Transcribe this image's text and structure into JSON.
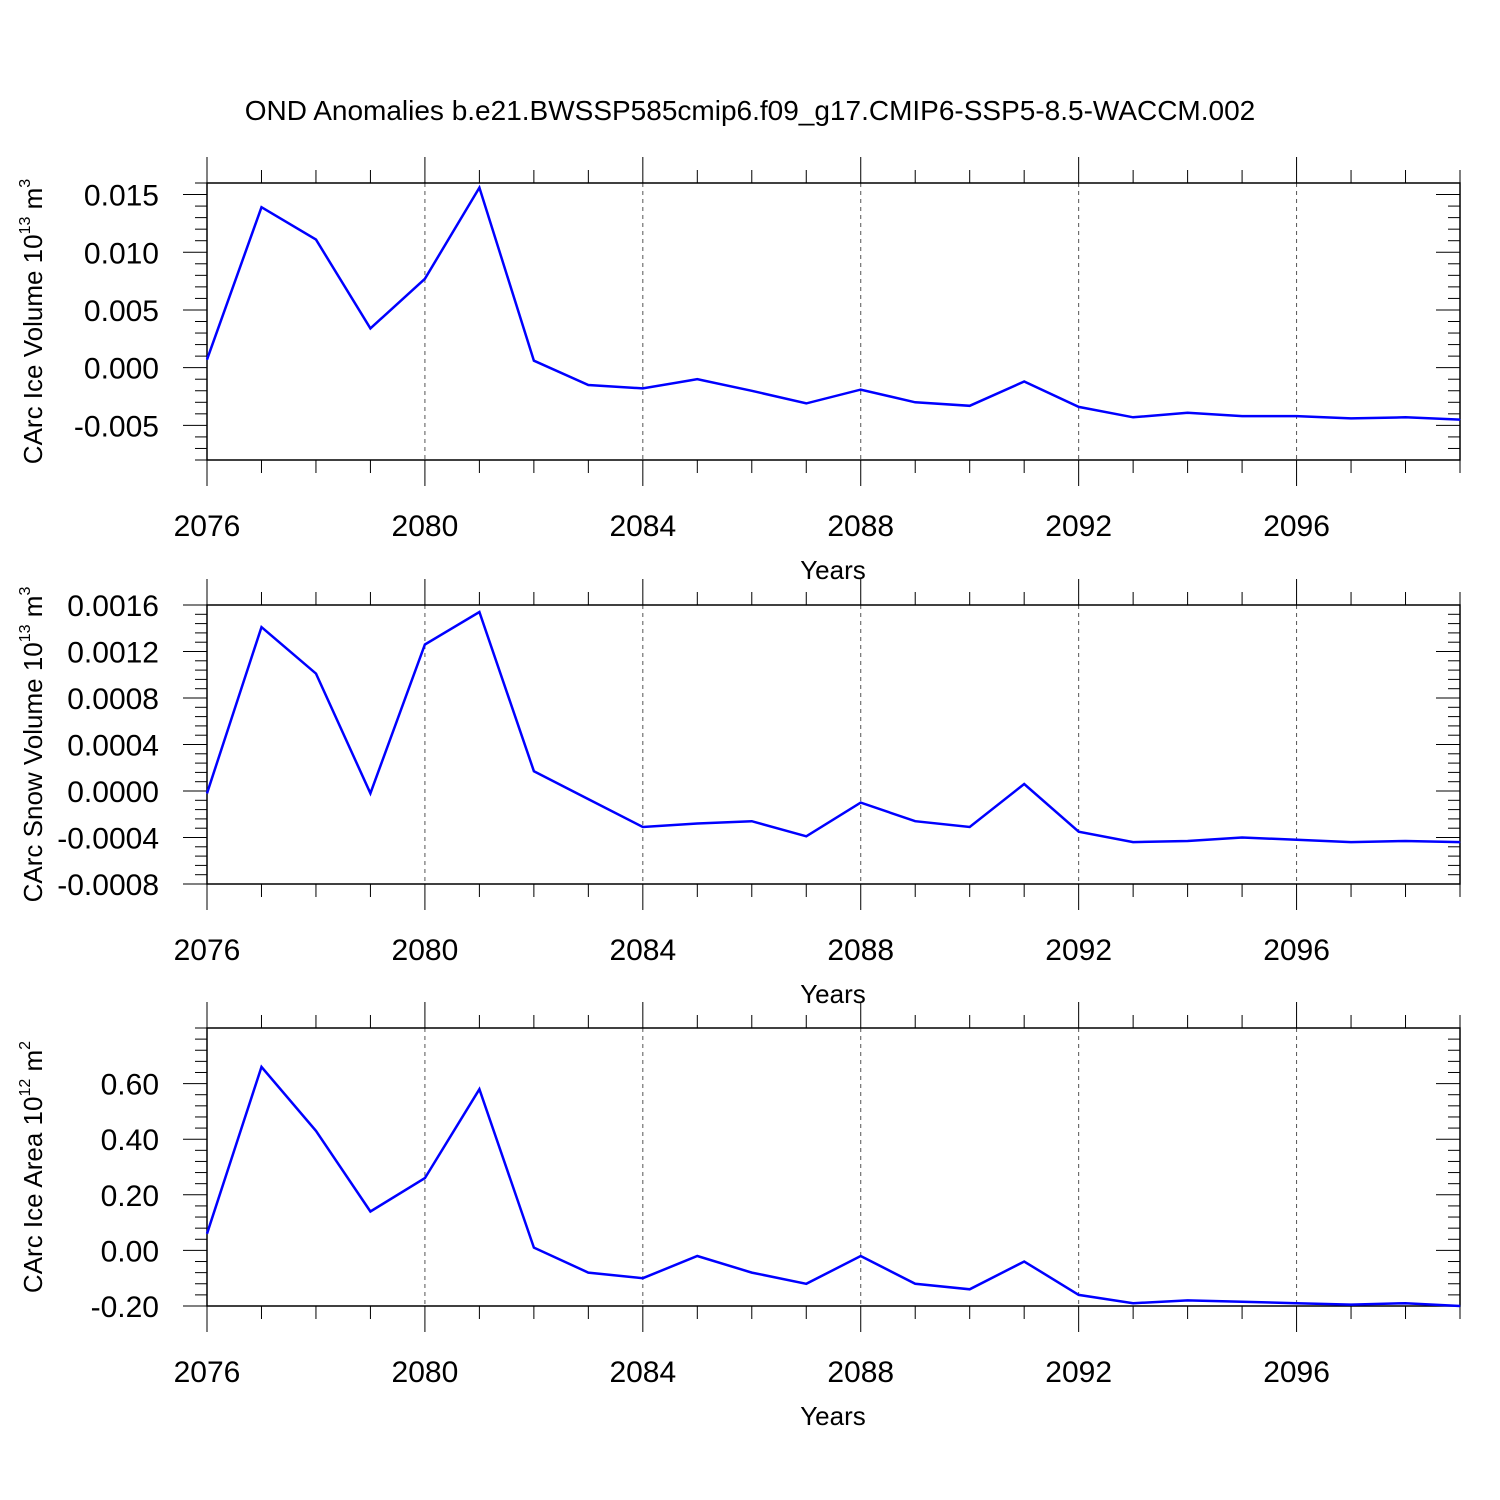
{
  "title": "OND Anomalies b.e21.BWSSP585cmip6.f09_g17.CMIP6-SSP5-8.5-WACCM.002",
  "colors": {
    "line": "#0000ff",
    "axis": "#000000",
    "grid": "#555555"
  },
  "chart_data": [
    {
      "type": "line",
      "xlabel": "Years",
      "ylabel": {
        "text": "CArc Ice Volume 10",
        "exponent": "13",
        "unit": "m",
        "unit_exponent": "3"
      },
      "xlim": [
        2076,
        2099
      ],
      "ylim": [
        -0.008,
        0.016
      ],
      "xticks": [
        2076,
        2080,
        2084,
        2088,
        2092,
        2096
      ],
      "yticks": [
        -0.005,
        0.0,
        0.005,
        0.01,
        0.015
      ],
      "ytick_labels": [
        "-0.005",
        "0.000",
        "0.005",
        "0.010",
        "0.015"
      ],
      "grid": "dashed vertical lines at labeled x ticks",
      "series": [
        {
          "x": [
            2076,
            2077,
            2078,
            2079,
            2080,
            2081,
            2082,
            2083,
            2084,
            2085,
            2086,
            2087,
            2088,
            2089,
            2090,
            2091,
            2092,
            2093,
            2094,
            2095,
            2096,
            2097,
            2098,
            2099
          ],
          "values": [
            0.0007,
            0.0139,
            0.0111,
            0.0034,
            0.0077,
            0.0156,
            0.0006,
            -0.0015,
            -0.0018,
            -0.001,
            -0.002,
            -0.0031,
            -0.0019,
            -0.003,
            -0.0033,
            -0.0012,
            -0.0034,
            -0.0043,
            -0.0039,
            -0.0042,
            -0.0042,
            -0.0044,
            -0.0043,
            -0.0045
          ]
        }
      ]
    },
    {
      "type": "line",
      "xlabel": "Years",
      "ylabel": {
        "text": "CArc Snow Volume 10",
        "exponent": "13",
        "unit": "m",
        "unit_exponent": "3"
      },
      "xlim": [
        2076,
        2099
      ],
      "ylim": [
        -0.0008,
        0.0016
      ],
      "xticks": [
        2076,
        2080,
        2084,
        2088,
        2092,
        2096
      ],
      "yticks": [
        -0.0008,
        -0.0004,
        0.0,
        0.0004,
        0.0008,
        0.0012,
        0.0016
      ],
      "ytick_labels": [
        "-0.0008",
        "-0.0004",
        "0.0000",
        "0.0004",
        "0.0008",
        "0.0012",
        "0.0016"
      ],
      "grid": "dashed vertical lines at labeled x ticks",
      "series": [
        {
          "x": [
            2076,
            2077,
            2078,
            2079,
            2080,
            2081,
            2082,
            2083,
            2084,
            2085,
            2086,
            2087,
            2088,
            2089,
            2090,
            2091,
            2092,
            2093,
            2094,
            2095,
            2096,
            2097,
            2098,
            2099
          ],
          "values": [
            -2e-05,
            0.00141,
            0.00101,
            -2e-05,
            0.00126,
            0.00154,
            0.00017,
            -7e-05,
            -0.00031,
            -0.00028,
            -0.00026,
            -0.00039,
            -0.0001,
            -0.00026,
            -0.00031,
            6e-05,
            -0.00035,
            -0.00044,
            -0.00043,
            -0.0004,
            -0.00042,
            -0.00044,
            -0.00043,
            -0.00044
          ]
        }
      ]
    },
    {
      "type": "line",
      "xlabel": "Years",
      "ylabel": {
        "text": "CArc Ice Area 10",
        "exponent": "12",
        "unit": "m",
        "unit_exponent": "2"
      },
      "xlim": [
        2076,
        2099
      ],
      "ylim": [
        -0.2,
        0.8
      ],
      "xticks": [
        2076,
        2080,
        2084,
        2088,
        2092,
        2096
      ],
      "yticks": [
        -0.2,
        0.0,
        0.2,
        0.4,
        0.6
      ],
      "ytick_labels": [
        "-0.20",
        "0.00",
        "0.20",
        "0.40",
        "0.60"
      ],
      "grid": "dashed vertical lines at labeled x ticks",
      "series": [
        {
          "x": [
            2076,
            2077,
            2078,
            2079,
            2080,
            2081,
            2082,
            2083,
            2084,
            2085,
            2086,
            2087,
            2088,
            2089,
            2090,
            2091,
            2092,
            2093,
            2094,
            2095,
            2096,
            2097,
            2098,
            2099
          ],
          "values": [
            0.06,
            0.66,
            0.43,
            0.14,
            0.26,
            0.58,
            0.01,
            -0.08,
            -0.1,
            -0.02,
            -0.08,
            -0.12,
            -0.02,
            -0.12,
            -0.14,
            -0.04,
            -0.16,
            -0.19,
            -0.18,
            -0.185,
            -0.19,
            -0.195,
            -0.19,
            -0.2
          ]
        }
      ]
    }
  ]
}
